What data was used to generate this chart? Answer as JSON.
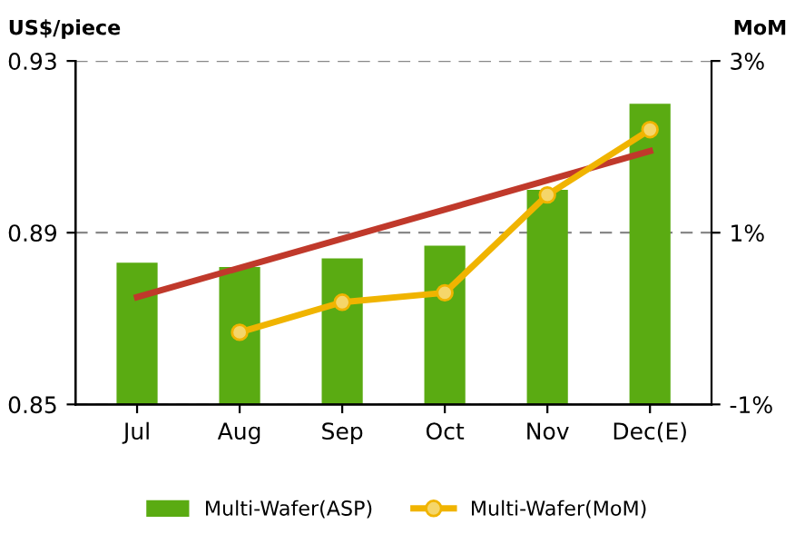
{
  "chart_data": {
    "type": "bar",
    "ylabel": "US$/piece",
    "y2label": "MoM",
    "categories": [
      "Jul",
      "Aug",
      "Sep",
      "Oct",
      "Nov",
      "Dec(E)"
    ],
    "series": [
      {
        "name": "Multi-Wafer(ASP)",
        "color": "#5aab12",
        "values": [
          0.883,
          0.882,
          0.884,
          0.887,
          0.9,
          0.92
        ]
      },
      {
        "name": "Multi-Wafer(MoM)",
        "type": "line",
        "axis": "y2",
        "color": "#f0b400",
        "marker": "circle",
        "values": [
          null,
          -0.16,
          0.19,
          0.3,
          1.44,
          2.2
        ]
      },
      {
        "type": "line",
        "color": "#c0392b",
        "marker": "none",
        "values": [
          0.875,
          null,
          null,
          null,
          null,
          0.909
        ]
      }
    ],
    "ylim": [
      0.85,
      0.93
    ],
    "yticks": [
      0.85,
      0.89,
      0.93
    ],
    "y2lim": [
      -1,
      3
    ],
    "y2ticks": [
      {
        "value": -1,
        "label": "-1%"
      },
      {
        "value": 1,
        "label": "1%"
      },
      {
        "value": 3,
        "label": "3%"
      }
    ],
    "grid": "y",
    "legend": "bottom"
  }
}
